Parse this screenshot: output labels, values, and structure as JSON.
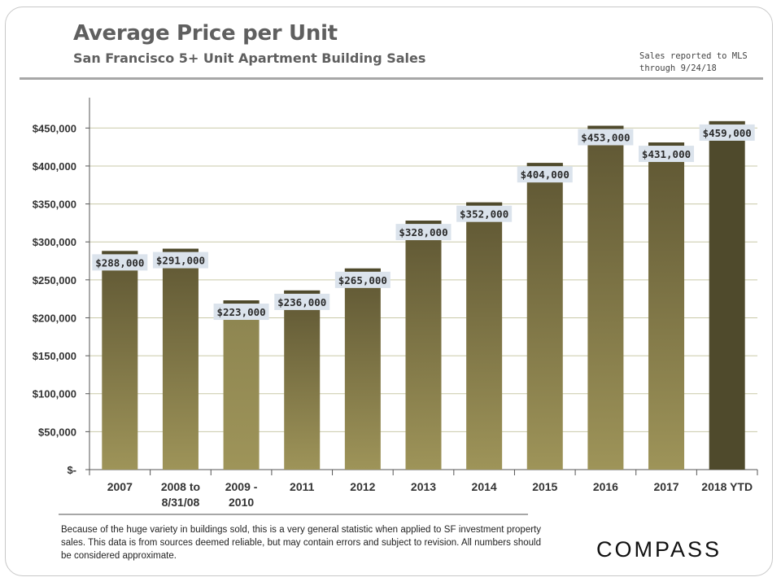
{
  "header": {
    "title": "Average Price per Unit",
    "subtitle": "San Francisco 5+ Unit Apartment Building Sales",
    "note_lines": [
      "Sales reported to MLS",
      "through  9/24/18"
    ]
  },
  "footer": {
    "disclaimer": "Because of the huge variety in buildings sold, this is a very general statistic when applied to SF investment property sales. This data is from sources deemed reliable, but may contain errors and subject to revision. All numbers should be considered approximate.",
    "logo_text": "COMPASS"
  },
  "colors": {
    "bar_top": "#5e5633",
    "bar_bottom": "#9e9459",
    "bar_light_top": "#8c8450",
    "bar_dark": "#4f4a2c",
    "label_bg": "#dbe3ec",
    "gridline": "#c9c9a8"
  },
  "chart_data": {
    "type": "bar",
    "title": "Average Price per Unit",
    "subtitle": "San Francisco 5+ Unit Apartment Building Sales",
    "categories": [
      [
        "2007"
      ],
      [
        "2008 to",
        "8/31/08"
      ],
      [
        "2009 -",
        "2010"
      ],
      [
        "2011"
      ],
      [
        "2012"
      ],
      [
        "2013"
      ],
      [
        "2014"
      ],
      [
        "2015"
      ],
      [
        "2016"
      ],
      [
        "2017"
      ],
      [
        "2018 YTD"
      ]
    ],
    "values": [
      288000,
      291000,
      223000,
      236000,
      265000,
      328000,
      352000,
      404000,
      453000,
      431000,
      459000
    ],
    "data_labels": [
      "$288,000",
      "$291,000",
      "$223,000",
      "$236,000",
      "$265,000",
      "$328,000",
      "$352,000",
      "$404,000",
      "$453,000",
      "$431,000",
      "$459,000"
    ],
    "y_ticks": [
      0,
      50000,
      100000,
      150000,
      200000,
      250000,
      300000,
      350000,
      400000,
      450000
    ],
    "y_tick_labels": [
      "$-",
      "$50,000",
      "$100,000",
      "$150,000",
      "$200,000",
      "$250,000",
      "$300,000",
      "$350,000",
      "$400,000",
      "$450,000"
    ],
    "ylim": [
      0,
      490000
    ],
    "grid": true,
    "legend": "none"
  }
}
